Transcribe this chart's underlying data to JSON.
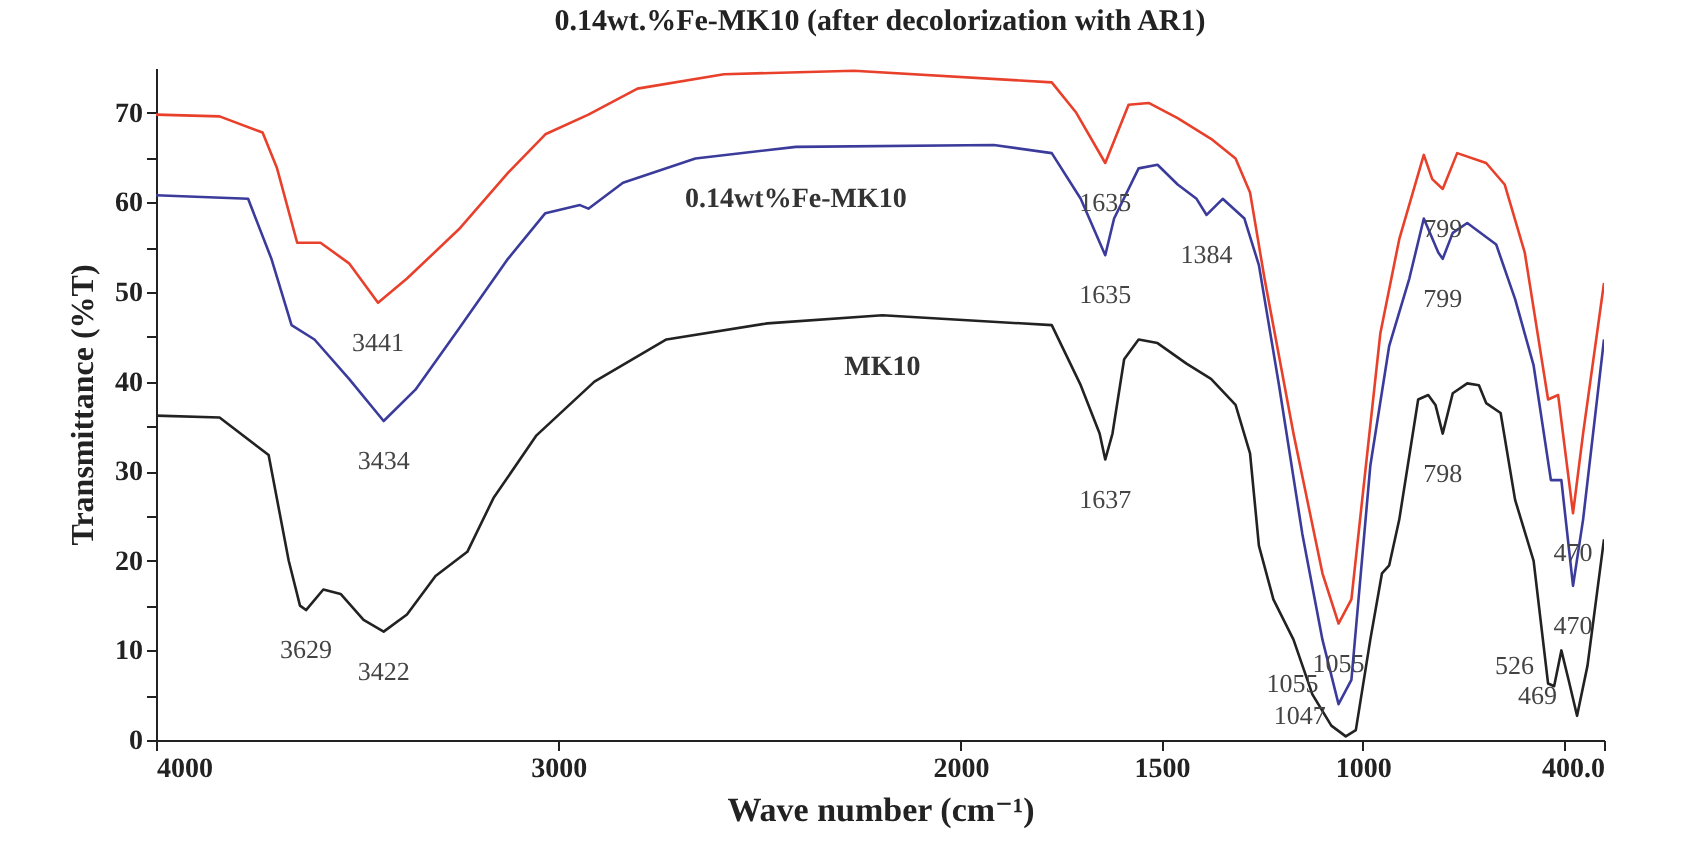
{
  "chart_data": {
    "type": "line",
    "title": "0.14wt.%Fe-MK10 (after decolorization with AR1)",
    "xlabel": "Wave number (cm⁻¹)",
    "ylabel": "Transmittance (%T)",
    "xlim": [
      4000,
      400
    ],
    "ylim": [
      0,
      75
    ],
    "xticks": [
      4000,
      3000,
      2000,
      1500,
      1000,
      {
        "value": 500,
        "label": null
      },
      {
        "value": 400,
        "label": "400.0"
      }
    ],
    "yticks": [
      0,
      {
        "value": 5,
        "label": null
      },
      10,
      {
        "value": 15,
        "label": null
      },
      20,
      {
        "value": 25,
        "label": null
      },
      30,
      {
        "value": 35,
        "label": null
      },
      40,
      {
        "value": 45,
        "label": null
      },
      50,
      {
        "value": 55,
        "label": null
      },
      60,
      {
        "value": 65,
        "label": null
      },
      70
    ],
    "grid": false,
    "legend": false,
    "series": [
      {
        "color": "#e8402a",
        "x": [
          4000,
          3842,
          3735,
          3699,
          3649,
          3591,
          3520,
          3448,
          3376,
          3247,
          3125,
          3032,
          2925,
          2803,
          2588,
          2265,
          1773,
          1712,
          1640,
          1582,
          1532,
          1460,
          1377,
          1316,
          1280,
          1244,
          1172,
          1100,
          1060,
          1028,
          992,
          956,
          909,
          848,
          827,
          801,
          765,
          693,
          647,
          597,
          539,
          514,
          477,
          452,
          400
        ],
        "values": [
          69.8,
          69.6,
          67.8,
          63.8,
          55.5,
          55.5,
          53.2,
          48.8,
          51.5,
          57,
          63.3,
          67.6,
          69.8,
          72.7,
          74.3,
          74.7,
          73.4,
          70,
          64.4,
          70.9,
          71.1,
          69.4,
          67.1,
          64.9,
          61.1,
          51.5,
          34.2,
          18.6,
          13,
          15.7,
          30.6,
          45.4,
          55.9,
          65.3,
          62.6,
          61.5,
          65.5,
          64.4,
          62,
          54.4,
          38,
          38.5,
          25.3,
          34.2,
          51
        ]
      },
      {
        "name": "0.14wt%Fe-MK10",
        "color": "#3b3b9c",
        "x": [
          4000,
          3771,
          3713,
          3663,
          3606,
          3520,
          3434,
          3355,
          3247,
          3125,
          3032,
          2946,
          2925,
          2839,
          2659,
          2409,
          1917,
          1773,
          1701,
          1640,
          1618,
          1557,
          1510,
          1460,
          1413,
          1388,
          1348,
          1294,
          1258,
          1208,
          1150,
          1100,
          1060,
          1028,
          981,
          934,
          884,
          848,
          812,
          801,
          776,
          740,
          668,
          621,
          575,
          532,
          506,
          477,
          452,
          400
        ],
        "values": [
          60.8,
          60.4,
          53.7,
          46.3,
          44.7,
          40.3,
          35.6,
          39.1,
          45.9,
          53.7,
          58.8,
          59.7,
          59.3,
          62.2,
          64.9,
          66.2,
          66.4,
          65.5,
          60.4,
          54.1,
          58.2,
          63.8,
          64.2,
          62,
          60.4,
          58.6,
          60.4,
          58.2,
          53,
          39.6,
          23,
          11.2,
          4,
          6.7,
          30.6,
          44,
          51.5,
          58.2,
          54.4,
          53.7,
          56.6,
          57.7,
          55.3,
          49.2,
          41.8,
          29,
          29,
          17.2,
          24.6,
          44.7
        ]
      },
      {
        "name": "MK10",
        "color": "#222222",
        "x": [
          4000,
          3842,
          3720,
          3670,
          3642,
          3627,
          3584,
          3541,
          3484,
          3434,
          3376,
          3305,
          3226,
          3161,
          3054,
          2910,
          2731,
          2480,
          2194,
          1773,
          1701,
          1654,
          1640,
          1622,
          1593,
          1557,
          1510,
          1438,
          1377,
          1316,
          1280,
          1258,
          1222,
          1172,
          1125,
          1078,
          1042,
          1017,
          981,
          952,
          934,
          909,
          862,
          837,
          819,
          801,
          776,
          740,
          711,
          693,
          657,
          621,
          575,
          539,
          524,
          506,
          488,
          467,
          441,
          400
        ],
        "values": [
          36.2,
          36,
          31.8,
          20,
          15,
          14.5,
          16.8,
          16.3,
          13.4,
          12.1,
          14,
          18.3,
          21,
          27,
          34,
          40,
          44.7,
          46.5,
          47.4,
          46.3,
          39.6,
          34.2,
          31.3,
          34.2,
          42.5,
          44.7,
          44.3,
          42,
          40.3,
          37.4,
          32,
          21.7,
          15.7,
          11.2,
          5.1,
          1.6,
          0.4,
          1.1,
          11.2,
          18.6,
          19.5,
          24.6,
          38,
          38.5,
          37.4,
          34.2,
          38.7,
          39.8,
          39.6,
          37.6,
          36.5,
          26.8,
          20,
          6.3,
          6,
          10,
          6.7,
          2.7,
          8.3,
          22.4
        ]
      }
    ],
    "annotations": [
      {
        "text": "3629",
        "x": 3627,
        "y": 14.5
      },
      {
        "text": "3441",
        "x": 3448,
        "y": 48.8
      },
      {
        "text": "3434",
        "x": 3434,
        "y": 35.6
      },
      {
        "text": "3422",
        "x": 3434,
        "y": 12.1
      },
      {
        "text": "1635",
        "x": 1640,
        "y": 64.4
      },
      {
        "text": "1635",
        "x": 1640,
        "y": 54.1
      },
      {
        "text": "1384",
        "x": 1388,
        "y": 58.6
      },
      {
        "text": "1637",
        "x": 1640,
        "y": 31.3
      },
      {
        "text": "1055",
        "x": 1060,
        "y": 13
      },
      {
        "text": "1055",
        "x": 1060,
        "y": 4
      },
      {
        "text": "1047",
        "x": 1042,
        "y": 0.4
      },
      {
        "text": "799",
        "x": 801,
        "y": 61.5
      },
      {
        "text": "799",
        "x": 801,
        "y": 53.7
      },
      {
        "text": "798",
        "x": 801,
        "y": 34.2
      },
      {
        "text": "470",
        "x": 477,
        "y": 25.3
      },
      {
        "text": "470",
        "x": 477,
        "y": 17.2
      },
      {
        "text": "526",
        "x": 524,
        "y": 6
      },
      {
        "text": "469",
        "x": 467,
        "y": 2.7
      }
    ]
  }
}
